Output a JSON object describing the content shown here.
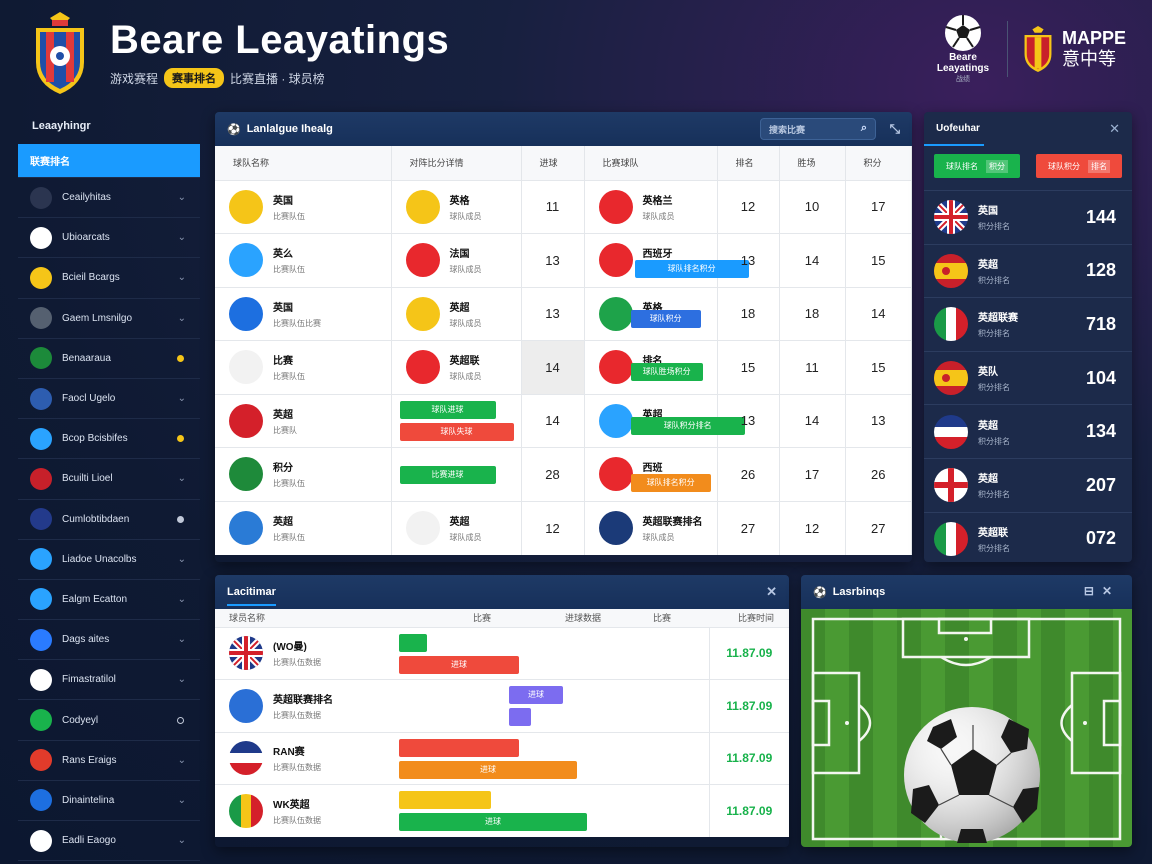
{
  "header": {
    "title": "Beare Leayatings",
    "subtitle_left": "游戏赛程",
    "subtitle_badge": "赛事排名",
    "subtitle_right": "比赛直播 · 球员榜",
    "brand_ball_text": "Beare Leayatings",
    "brand_ball_small": "战绩",
    "brand_name": "MAPPE",
    "brand_name2": "意中等"
  },
  "sidebar": {
    "title": "Leaayhingr",
    "items": [
      {
        "label": "联赛排名",
        "icon": "list-icon",
        "active": true
      },
      {
        "label": "Ceailyhitas",
        "icon": "team-crest-icon",
        "marker": "chevron"
      },
      {
        "label": "Ubioarcats",
        "icon": "france-flag-icon",
        "marker": "chevron"
      },
      {
        "label": "Bcieil Bcargs",
        "icon": "spain-crest-icon",
        "marker": "chevron"
      },
      {
        "label": "Gaem Lmsnilgo",
        "icon": "stadium-icon",
        "marker": "chevron"
      },
      {
        "label": "Benaaraua",
        "icon": "flag-icon",
        "marker": "dot",
        "dot_color": "#f5c518"
      },
      {
        "label": "Faocl Ugelo",
        "icon": "grid-icon",
        "marker": "chevron"
      },
      {
        "label": "Bcop Bcisbifes",
        "icon": "chart-icon",
        "marker": "dot",
        "dot_color": "#f5c518"
      },
      {
        "label": "Bcuilti Lioel",
        "icon": "club-icon",
        "marker": "chevron"
      },
      {
        "label": "Cumlobtibdaen",
        "icon": "uk-flag-icon",
        "marker": "dot",
        "dot_color": "#c0c8d8"
      },
      {
        "label": "Liadoe Unacolbs",
        "icon": "screen-icon",
        "marker": "chevron"
      },
      {
        "label": "Ealgm Ecatton",
        "icon": "camera-icon",
        "marker": "chevron"
      },
      {
        "label": "Dags aites",
        "icon": "document-icon",
        "marker": "chevron"
      },
      {
        "label": "Fimastratilol",
        "icon": "cloud-icon",
        "marker": "chevron"
      },
      {
        "label": "Codyeyl",
        "icon": "circle-icon",
        "marker": "ring"
      },
      {
        "label": "Rans Eraigs",
        "icon": "car-icon",
        "marker": "chevron"
      },
      {
        "label": "Dinaintelina",
        "icon": "globe-icon",
        "marker": "chevron"
      },
      {
        "label": "Eadli Eaogo",
        "icon": "ball-icon",
        "marker": "chevron"
      }
    ]
  },
  "matches": {
    "title": "Lanlalgue Ihealg",
    "search_placeholder": "搜索比赛",
    "headers": [
      "球队名称",
      "对阵比分详情",
      "进球",
      "比赛球队",
      "排名",
      "胜场",
      "积分"
    ],
    "rows": [
      {
        "home": "英国",
        "home_sub": "比赛队伍",
        "away": "英格",
        "away_sub": "球队成员",
        "goals": "11",
        "team2": "英格兰",
        "team2_sub": "球队成员",
        "c1": "12",
        "c2": "10",
        "c3": "17"
      },
      {
        "home": "英么",
        "home_sub": "比赛队伍",
        "away": "法国",
        "away_sub": "球队成员",
        "goals": "13",
        "team2": "西班牙",
        "team2_sub": "球队成员",
        "bar": "球队排名积分",
        "c1": "13",
        "c2": "14",
        "c3": "15"
      },
      {
        "home": "英国",
        "home_sub": "比赛队伍比赛",
        "away": "英超",
        "away_sub": "球队成员",
        "goals": "13",
        "team2": "英格",
        "team2_sub": "球队成员",
        "bar": "球队积分",
        "c1": "18",
        "c2": "18",
        "c3": "14"
      },
      {
        "home": "比赛",
        "home_sub": "比赛队伍",
        "away": "英超联",
        "away_sub": "球队成员",
        "goals": "14",
        "team2": "排名",
        "team2_sub": "球队成员",
        "bar": "球队胜场积分",
        "c1": "15",
        "c2": "11",
        "c3": "15"
      },
      {
        "home": "英超",
        "home_sub": "比赛队",
        "bar_a": "球队进球",
        "bar_b": "球队失球",
        "goals": "14",
        "team2": "英超",
        "team2_sub": "球队成员",
        "bar": "球队积分排名",
        "c1": "13",
        "c2": "14",
        "c3": "13"
      },
      {
        "home": "积分",
        "home_sub": "比赛队伍",
        "bar_a": "比赛进球",
        "goals": "28",
        "team2": "西班",
        "team2_sub": "球队成员",
        "bar": "球队排名积分",
        "c1": "26",
        "c2": "17",
        "c3": "26"
      },
      {
        "home": "英超",
        "home_sub": "比赛队伍",
        "away": "英超",
        "away_sub": "球队成员",
        "goals": "12",
        "team2": "英超联赛排名",
        "team2_sub": "球队成员",
        "c1": "27",
        "c2": "12",
        "c3": "27"
      }
    ]
  },
  "standings": {
    "title": "Uofeuhar",
    "btn_left": "球队排名",
    "btn_left_badge": "积分",
    "btn_right": "球队积分",
    "btn_right_badge": "排名",
    "rows": [
      {
        "name": "英国",
        "sub": "积分排名",
        "score": "144"
      },
      {
        "name": "英超",
        "sub": "积分排名",
        "score": "128"
      },
      {
        "name": "英超联赛",
        "sub": "积分排名",
        "score": "718"
      },
      {
        "name": "英队",
        "sub": "积分排名",
        "score": "104"
      },
      {
        "name": "英超",
        "sub": "积分排名",
        "score": "134"
      },
      {
        "name": "英超",
        "sub": "积分排名",
        "score": "207"
      },
      {
        "name": "英超联",
        "sub": "积分排名",
        "score": "072"
      }
    ]
  },
  "stats": {
    "title": "Lacitimar",
    "headers": [
      "球员名称",
      "比赛",
      "进球数据",
      "比赛",
      "比赛时间"
    ],
    "rows": [
      {
        "name": "(WO曼)",
        "sub": "比赛队伍数据",
        "time": "11.87.09"
      },
      {
        "name": "英超联赛排名",
        "sub": "比赛队伍数据",
        "time": "11.87.09"
      },
      {
        "name": "RAN赛",
        "sub": "比赛队伍数据",
        "time": "11.87.09"
      },
      {
        "name": "WK英超",
        "sub": "比赛队伍数据",
        "time": "11.87.09"
      }
    ],
    "bar_label": "进球"
  },
  "pitch": {
    "title": "Lasrbinqs"
  }
}
